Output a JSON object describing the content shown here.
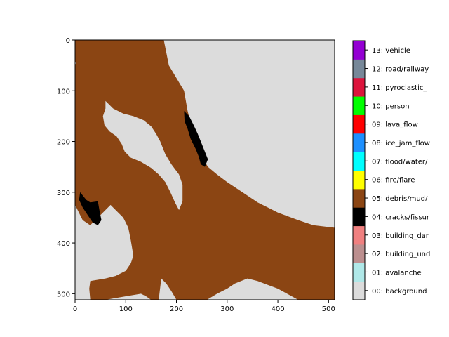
{
  "chart_data": {
    "type": "heatmap",
    "subtype": "segmentation-mask",
    "title": "",
    "xlabel": "",
    "ylabel": "",
    "xlim": [
      0,
      512
    ],
    "ylim": [
      512,
      0
    ],
    "xticks": [
      0,
      100,
      200,
      300,
      400,
      500
    ],
    "yticks": [
      0,
      100,
      200,
      300,
      400,
      500
    ],
    "grid": false,
    "colorbar": {
      "position": "right",
      "entries": [
        {
          "value": 0,
          "label": "00: background",
          "color": "#dcdcdc"
        },
        {
          "value": 1,
          "label": "01: avalanche",
          "color": "#b0e8e8"
        },
        {
          "value": 2,
          "label": "02: building_und",
          "color": "#bc8f8f"
        },
        {
          "value": 3,
          "label": "03: building_dar",
          "color": "#f08080"
        },
        {
          "value": 4,
          "label": "04: cracks/fissur",
          "color": "#000000"
        },
        {
          "value": 5,
          "label": "05: debris/mud/",
          "color": "#8b4513"
        },
        {
          "value": 6,
          "label": "06: fire/flare",
          "color": "#ffff00"
        },
        {
          "value": 7,
          "label": "07: flood/water/",
          "color": "#00ffff"
        },
        {
          "value": 8,
          "label": "08: ice_jam_flow",
          "color": "#1e90ff"
        },
        {
          "value": 9,
          "label": "09: lava_flow",
          "color": "#ff0000"
        },
        {
          "value": 10,
          "label": "10: person",
          "color": "#00ff00"
        },
        {
          "value": 11,
          "label": "11: pyroclastic_",
          "color": "#dc143c"
        },
        {
          "value": 12,
          "label": "12: road/railway",
          "color": "#778899"
        },
        {
          "value": 13,
          "label": "13: vehicle",
          "color": "#9400d3"
        }
      ]
    },
    "regions": [
      {
        "class": 5,
        "polygon": [
          [
            0,
            0
          ],
          [
            175,
            0
          ],
          [
            185,
            50
          ],
          [
            215,
            100
          ],
          [
            222,
            140
          ],
          [
            235,
            190
          ],
          [
            250,
            230
          ],
          [
            262,
            250
          ],
          [
            280,
            265
          ],
          [
            300,
            280
          ],
          [
            330,
            300
          ],
          [
            360,
            320
          ],
          [
            400,
            340
          ],
          [
            440,
            355
          ],
          [
            470,
            365
          ],
          [
            512,
            370
          ],
          [
            512,
            512
          ],
          [
            440,
            512
          ],
          [
            400,
            490
          ],
          [
            360,
            475
          ],
          [
            340,
            470
          ],
          [
            315,
            480
          ],
          [
            300,
            490
          ],
          [
            280,
            500
          ],
          [
            260,
            512
          ],
          [
            200,
            512
          ],
          [
            190,
            495
          ],
          [
            180,
            480
          ],
          [
            170,
            470
          ],
          [
            165,
            512
          ],
          [
            150,
            512
          ],
          [
            140,
            505
          ],
          [
            130,
            500
          ],
          [
            100,
            505
          ],
          [
            60,
            512
          ],
          [
            30,
            512
          ],
          [
            28,
            490
          ],
          [
            30,
            475
          ],
          [
            60,
            470
          ],
          [
            80,
            465
          ],
          [
            100,
            455
          ],
          [
            110,
            440
          ],
          [
            115,
            425
          ],
          [
            110,
            395
          ],
          [
            105,
            370
          ],
          [
            95,
            350
          ],
          [
            80,
            335
          ],
          [
            70,
            325
          ],
          [
            50,
            345
          ],
          [
            40,
            355
          ],
          [
            30,
            365
          ],
          [
            15,
            355
          ],
          [
            0,
            325
          ],
          [
            0,
            210
          ],
          [
            10,
            220
          ],
          [
            20,
            230
          ],
          [
            40,
            255
          ],
          [
            65,
            285
          ],
          [
            80,
            295
          ],
          [
            100,
            290
          ],
          [
            120,
            300
          ],
          [
            135,
            315
          ],
          [
            150,
            330
          ],
          [
            170,
            340
          ],
          [
            190,
            355
          ],
          [
            200,
            375
          ],
          [
            210,
            390
          ],
          [
            200,
            400
          ],
          [
            185,
            385
          ],
          [
            170,
            365
          ],
          [
            150,
            345
          ],
          [
            120,
            320
          ],
          [
            100,
            305
          ],
          [
            80,
            295
          ],
          [
            60,
            285
          ],
          [
            40,
            270
          ],
          [
            25,
            255
          ],
          [
            15,
            240
          ],
          [
            5,
            225
          ],
          [
            0,
            215
          ],
          [
            0,
            45
          ],
          [
            10,
            65
          ],
          [
            20,
            85
          ],
          [
            35,
            95
          ],
          [
            50,
            100
          ],
          [
            60,
            115
          ],
          [
            70,
            130
          ],
          [
            80,
            140
          ],
          [
            100,
            145
          ],
          [
            120,
            150
          ],
          [
            140,
            160
          ],
          [
            155,
            175
          ],
          [
            165,
            190
          ],
          [
            170,
            205
          ],
          [
            180,
            230
          ],
          [
            195,
            250
          ],
          [
            210,
            270
          ],
          [
            215,
            290
          ],
          [
            215,
            320
          ],
          [
            208,
            340
          ],
          [
            200,
            330
          ],
          [
            192,
            310
          ],
          [
            185,
            290
          ],
          [
            175,
            275
          ],
          [
            165,
            265
          ],
          [
            160,
            255
          ],
          [
            150,
            245
          ],
          [
            130,
            235
          ],
          [
            110,
            228
          ],
          [
            100,
            220
          ],
          [
            95,
            205
          ],
          [
            85,
            190
          ],
          [
            70,
            180
          ],
          [
            60,
            170
          ],
          [
            55,
            155
          ],
          [
            60,
            140
          ],
          [
            50,
            125
          ],
          [
            40,
            110
          ],
          [
            25,
            95
          ],
          [
            15,
            80
          ],
          [
            5,
            60
          ],
          [
            0,
            40
          ]
        ]
      },
      {
        "class": 0,
        "polygon": [
          [
            60,
            120
          ],
          [
            75,
            135
          ],
          [
            95,
            145
          ],
          [
            115,
            150
          ],
          [
            135,
            158
          ],
          [
            150,
            170
          ],
          [
            160,
            185
          ],
          [
            168,
            200
          ],
          [
            178,
            225
          ],
          [
            190,
            245
          ],
          [
            205,
            265
          ],
          [
            212,
            285
          ],
          [
            212,
            318
          ],
          [
            205,
            335
          ],
          [
            197,
            320
          ],
          [
            188,
            300
          ],
          [
            178,
            280
          ],
          [
            165,
            265
          ],
          [
            150,
            252
          ],
          [
            130,
            240
          ],
          [
            110,
            232
          ],
          [
            98,
            220
          ],
          [
            92,
            205
          ],
          [
            82,
            190
          ],
          [
            68,
            180
          ],
          [
            58,
            168
          ],
          [
            55,
            150
          ],
          [
            60,
            135
          ]
        ]
      },
      {
        "class": 4,
        "polygon": [
          [
            215,
            140
          ],
          [
            225,
            150
          ],
          [
            235,
            170
          ],
          [
            242,
            185
          ],
          [
            248,
            200
          ],
          [
            252,
            210
          ],
          [
            258,
            225
          ],
          [
            262,
            235
          ],
          [
            256,
            250
          ],
          [
            248,
            245
          ],
          [
            244,
            230
          ],
          [
            238,
            215
          ],
          [
            228,
            195
          ],
          [
            222,
            175
          ],
          [
            216,
            160
          ]
        ]
      },
      {
        "class": 4,
        "polygon": [
          [
            10,
            300
          ],
          [
            22,
            315
          ],
          [
            30,
            320
          ],
          [
            45,
            318
          ],
          [
            48,
            335
          ],
          [
            52,
            355
          ],
          [
            45,
            365
          ],
          [
            35,
            360
          ],
          [
            25,
            345
          ],
          [
            15,
            330
          ],
          [
            8,
            315
          ]
        ]
      }
    ]
  }
}
